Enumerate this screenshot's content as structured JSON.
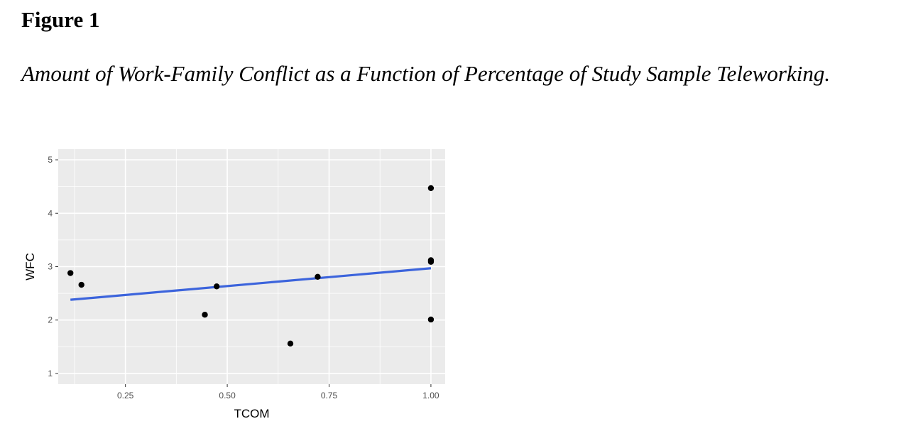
{
  "figure": {
    "label": "Figure 1",
    "caption": "Amount of Work-Family Conflict as a Function of Percentage of Study Sample Teleworking."
  },
  "chart_data": {
    "type": "scatter",
    "title": "",
    "xlabel": "TCOM",
    "ylabel": "WFC",
    "xlim": [
      0.085,
      1.035
    ],
    "ylim": [
      0.8,
      5.2
    ],
    "x_ticks": [
      0.25,
      0.5,
      0.75,
      1.0
    ],
    "x_tick_labels": [
      "0.25",
      "0.50",
      "0.75",
      "1.00"
    ],
    "y_ticks": [
      1,
      2,
      3,
      4,
      5
    ],
    "y_tick_labels": [
      "1",
      "2",
      "3",
      "4",
      "5"
    ],
    "grid": true,
    "legend": "none",
    "panel_color": "#ebebeb",
    "grid_color": "#ffffff",
    "point_color": "#000000",
    "line_color": "#3c64dc",
    "points": [
      {
        "x": 0.115,
        "y": 2.88
      },
      {
        "x": 0.142,
        "y": 2.66
      },
      {
        "x": 0.445,
        "y": 2.1
      },
      {
        "x": 0.474,
        "y": 2.63
      },
      {
        "x": 0.655,
        "y": 1.56
      },
      {
        "x": 0.722,
        "y": 2.81
      },
      {
        "x": 1.0,
        "y": 4.47
      },
      {
        "x": 1.0,
        "y": 3.12
      },
      {
        "x": 1.0,
        "y": 3.09
      },
      {
        "x": 1.0,
        "y": 2.01
      }
    ],
    "fit_line": {
      "x": [
        0.115,
        1.0
      ],
      "y": [
        2.38,
        2.97
      ]
    }
  }
}
